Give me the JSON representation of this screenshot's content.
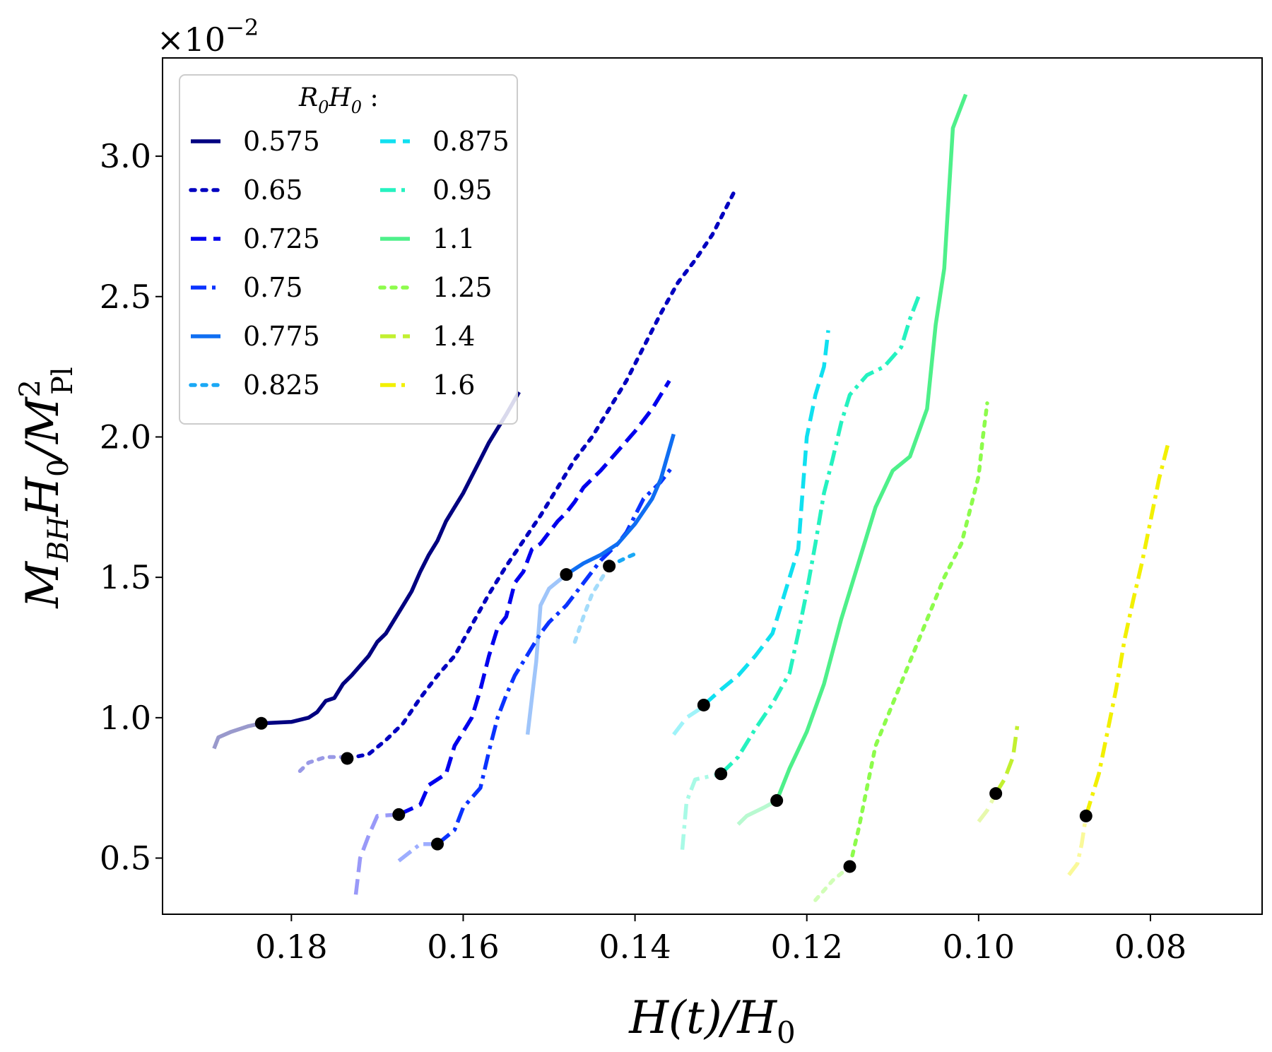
{
  "chart_data": {
    "type": "line",
    "title": "",
    "xlabel": "H(t)/H",
    "xlabel_sub": "0",
    "ylabel_main": "M",
    "ylabel_sub1": "BH",
    "ylabel_mid": "H",
    "ylabel_sub2": "0",
    "ylabel_tail": "/M",
    "ylabel_sup": "2",
    "ylabel_sub3": "Pl",
    "y_multiplier": "×10",
    "y_multiplier_exp": "−2",
    "xlim": [
      0.195,
      0.067
    ],
    "ylim": [
      0.3,
      3.35
    ],
    "x_ticks": [
      0.18,
      0.16,
      0.14,
      0.12,
      0.1,
      0.08
    ],
    "x_tick_labels": [
      "0.18",
      "0.16",
      "0.14",
      "0.12",
      "0.10",
      "0.08"
    ],
    "y_ticks": [
      0.5,
      1.0,
      1.5,
      2.0,
      2.5,
      3.0
    ],
    "y_tick_labels": [
      "0.5",
      "1.0",
      "1.5",
      "2.0",
      "2.5",
      "3.0"
    ],
    "legend": {
      "title_main": "R",
      "title_sub1": "0",
      "title_mid": "H",
      "title_sub2": "0",
      "title_tail": " :",
      "position": "top-left"
    },
    "series": [
      {
        "name": "0.575",
        "color": "#000080",
        "dash": "solid",
        "pre": [
          [
            0.189,
            0.89
          ],
          [
            0.1885,
            0.93
          ],
          [
            0.187,
            0.95
          ],
          [
            0.185,
            0.97
          ],
          [
            0.1835,
            0.98
          ]
        ],
        "marker": [
          0.1835,
          0.98
        ],
        "post": [
          [
            0.1835,
            0.98
          ],
          [
            0.18,
            0.985
          ],
          [
            0.178,
            1.0
          ],
          [
            0.177,
            1.02
          ],
          [
            0.176,
            1.06
          ],
          [
            0.175,
            1.07
          ],
          [
            0.174,
            1.12
          ],
          [
            0.173,
            1.15
          ],
          [
            0.171,
            1.22
          ],
          [
            0.17,
            1.27
          ],
          [
            0.169,
            1.3
          ],
          [
            0.168,
            1.35
          ],
          [
            0.167,
            1.4
          ],
          [
            0.166,
            1.45
          ],
          [
            0.165,
            1.52
          ],
          [
            0.164,
            1.58
          ],
          [
            0.163,
            1.63
          ],
          [
            0.162,
            1.7
          ],
          [
            0.161,
            1.75
          ],
          [
            0.16,
            1.8
          ],
          [
            0.159,
            1.86
          ],
          [
            0.158,
            1.92
          ],
          [
            0.157,
            1.98
          ],
          [
            0.156,
            2.03
          ],
          [
            0.155,
            2.08
          ],
          [
            0.1535,
            2.16
          ]
        ]
      },
      {
        "name": "0.65",
        "color": "#0000c0",
        "dash": "dotted",
        "pre": [
          [
            0.179,
            0.81
          ],
          [
            0.178,
            0.84
          ],
          [
            0.176,
            0.86
          ],
          [
            0.1735,
            0.86
          ]
        ],
        "marker": [
          0.1735,
          0.855
        ],
        "post": [
          [
            0.1735,
            0.855
          ],
          [
            0.171,
            0.87
          ],
          [
            0.169,
            0.92
          ],
          [
            0.167,
            0.98
          ],
          [
            0.165,
            1.07
          ],
          [
            0.163,
            1.15
          ],
          [
            0.161,
            1.22
          ],
          [
            0.159,
            1.33
          ],
          [
            0.157,
            1.44
          ],
          [
            0.155,
            1.54
          ],
          [
            0.153,
            1.63
          ],
          [
            0.151,
            1.72
          ],
          [
            0.149,
            1.82
          ],
          [
            0.147,
            1.92
          ],
          [
            0.145,
            2.0
          ],
          [
            0.143,
            2.1
          ],
          [
            0.141,
            2.2
          ],
          [
            0.139,
            2.32
          ],
          [
            0.137,
            2.44
          ],
          [
            0.135,
            2.55
          ],
          [
            0.133,
            2.63
          ],
          [
            0.131,
            2.72
          ],
          [
            0.1285,
            2.87
          ]
        ]
      },
      {
        "name": "0.725",
        "color": "#0000ee",
        "dash": "dashed",
        "pre": [
          [
            0.1725,
            0.37
          ],
          [
            0.172,
            0.5
          ],
          [
            0.171,
            0.58
          ],
          [
            0.17,
            0.65
          ],
          [
            0.1675,
            0.655
          ]
        ],
        "marker": [
          0.1675,
          0.655
        ],
        "post": [
          [
            0.1675,
            0.655
          ],
          [
            0.165,
            0.69
          ],
          [
            0.164,
            0.76
          ],
          [
            0.162,
            0.8
          ],
          [
            0.161,
            0.9
          ],
          [
            0.159,
            1.0
          ],
          [
            0.158,
            1.1
          ],
          [
            0.157,
            1.22
          ],
          [
            0.156,
            1.32
          ],
          [
            0.155,
            1.36
          ],
          [
            0.154,
            1.48
          ],
          [
            0.153,
            1.52
          ],
          [
            0.152,
            1.6
          ],
          [
            0.151,
            1.62
          ],
          [
            0.15,
            1.66
          ],
          [
            0.149,
            1.7
          ],
          [
            0.148,
            1.73
          ],
          [
            0.147,
            1.77
          ],
          [
            0.146,
            1.82
          ],
          [
            0.144,
            1.88
          ],
          [
            0.142,
            1.95
          ],
          [
            0.14,
            2.02
          ],
          [
            0.138,
            2.1
          ],
          [
            0.136,
            2.2
          ]
        ]
      },
      {
        "name": "0.75",
        "color": "#0a33ff",
        "dash": "dashdot",
        "pre": [
          [
            0.1675,
            0.49
          ],
          [
            0.165,
            0.55
          ],
          [
            0.163,
            0.55
          ]
        ],
        "marker": [
          0.163,
          0.55
        ],
        "post": [
          [
            0.163,
            0.55
          ],
          [
            0.161,
            0.6
          ],
          [
            0.16,
            0.68
          ],
          [
            0.158,
            0.75
          ],
          [
            0.157,
            0.88
          ],
          [
            0.156,
            1.0
          ],
          [
            0.155,
            1.08
          ],
          [
            0.154,
            1.15
          ],
          [
            0.153,
            1.2
          ],
          [
            0.152,
            1.25
          ],
          [
            0.151,
            1.3
          ],
          [
            0.15,
            1.34
          ],
          [
            0.149,
            1.37
          ],
          [
            0.148,
            1.4
          ],
          [
            0.147,
            1.44
          ],
          [
            0.146,
            1.48
          ],
          [
            0.145,
            1.52
          ],
          [
            0.144,
            1.56
          ],
          [
            0.142,
            1.62
          ],
          [
            0.141,
            1.66
          ],
          [
            0.14,
            1.72
          ],
          [
            0.139,
            1.78
          ],
          [
            0.137,
            1.84
          ],
          [
            0.1355,
            1.9
          ]
        ]
      },
      {
        "name": "0.775",
        "color": "#0f6ef2",
        "dash": "solid",
        "pre": [
          [
            0.1525,
            0.94
          ],
          [
            0.1515,
            1.2
          ],
          [
            0.151,
            1.4
          ],
          [
            0.15,
            1.46
          ],
          [
            0.148,
            1.51
          ]
        ],
        "marker": [
          0.148,
          1.51
        ],
        "post": [
          [
            0.148,
            1.51
          ],
          [
            0.146,
            1.55
          ],
          [
            0.144,
            1.58
          ],
          [
            0.142,
            1.62
          ],
          [
            0.14,
            1.69
          ],
          [
            0.138,
            1.78
          ],
          [
            0.137,
            1.85
          ],
          [
            0.1355,
            2.01
          ]
        ]
      },
      {
        "name": "0.825",
        "color": "#1aa8f5",
        "dash": "dotted",
        "pre": [
          [
            0.147,
            1.27
          ],
          [
            0.146,
            1.36
          ],
          [
            0.145,
            1.44
          ],
          [
            0.143,
            1.54
          ]
        ],
        "marker": [
          0.143,
          1.54
        ],
        "post": [
          [
            0.143,
            1.54
          ],
          [
            0.141,
            1.57
          ],
          [
            0.1395,
            1.59
          ]
        ]
      },
      {
        "name": "0.875",
        "color": "#10e0f0",
        "dash": "dashed",
        "pre": [
          [
            0.1355,
            0.94
          ],
          [
            0.134,
            1.0
          ],
          [
            0.132,
            1.04
          ]
        ],
        "marker": [
          0.132,
          1.045
        ],
        "post": [
          [
            0.132,
            1.045
          ],
          [
            0.13,
            1.1
          ],
          [
            0.128,
            1.15
          ],
          [
            0.126,
            1.22
          ],
          [
            0.124,
            1.3
          ],
          [
            0.123,
            1.4
          ],
          [
            0.122,
            1.5
          ],
          [
            0.121,
            1.6
          ],
          [
            0.1205,
            1.8
          ],
          [
            0.12,
            2.0
          ],
          [
            0.119,
            2.15
          ],
          [
            0.118,
            2.25
          ],
          [
            0.1175,
            2.38
          ]
        ]
      },
      {
        "name": "0.95",
        "color": "#25f2c0",
        "dash": "dashdot",
        "pre": [
          [
            0.1345,
            0.53
          ],
          [
            0.134,
            0.7
          ],
          [
            0.133,
            0.78
          ],
          [
            0.13,
            0.8
          ]
        ],
        "marker": [
          0.13,
          0.8
        ],
        "post": [
          [
            0.13,
            0.8
          ],
          [
            0.128,
            0.86
          ],
          [
            0.126,
            0.96
          ],
          [
            0.124,
            1.05
          ],
          [
            0.122,
            1.16
          ],
          [
            0.121,
            1.3
          ],
          [
            0.12,
            1.45
          ],
          [
            0.119,
            1.62
          ],
          [
            0.118,
            1.8
          ],
          [
            0.117,
            1.92
          ],
          [
            0.116,
            2.05
          ],
          [
            0.115,
            2.15
          ],
          [
            0.113,
            2.22
          ],
          [
            0.111,
            2.25
          ],
          [
            0.109,
            2.32
          ],
          [
            0.108,
            2.42
          ],
          [
            0.107,
            2.5
          ]
        ]
      },
      {
        "name": "1.1",
        "color": "#4ef08a",
        "dash": "solid",
        "pre": [
          [
            0.128,
            0.62
          ],
          [
            0.127,
            0.65
          ],
          [
            0.125,
            0.68
          ],
          [
            0.1235,
            0.705
          ]
        ],
        "marker": [
          0.1235,
          0.705
        ],
        "post": [
          [
            0.1235,
            0.705
          ],
          [
            0.122,
            0.82
          ],
          [
            0.12,
            0.95
          ],
          [
            0.118,
            1.12
          ],
          [
            0.116,
            1.35
          ],
          [
            0.114,
            1.55
          ],
          [
            0.112,
            1.75
          ],
          [
            0.11,
            1.88
          ],
          [
            0.108,
            1.93
          ],
          [
            0.106,
            2.1
          ],
          [
            0.105,
            2.4
          ],
          [
            0.104,
            2.6
          ],
          [
            0.103,
            3.1
          ],
          [
            0.1015,
            3.22
          ]
        ]
      },
      {
        "name": "1.25",
        "color": "#8dfc4c",
        "dash": "dotted",
        "pre": [
          [
            0.119,
            0.35
          ],
          [
            0.117,
            0.42
          ],
          [
            0.115,
            0.47
          ]
        ],
        "marker": [
          0.115,
          0.47
        ],
        "post": [
          [
            0.115,
            0.47
          ],
          [
            0.114,
            0.6
          ],
          [
            0.113,
            0.75
          ],
          [
            0.112,
            0.9
          ],
          [
            0.11,
            1.05
          ],
          [
            0.108,
            1.2
          ],
          [
            0.106,
            1.35
          ],
          [
            0.104,
            1.5
          ],
          [
            0.102,
            1.62
          ],
          [
            0.101,
            1.74
          ],
          [
            0.1,
            1.86
          ],
          [
            0.0995,
            2.0
          ],
          [
            0.099,
            2.12
          ]
        ]
      },
      {
        "name": "1.4",
        "color": "#c2f030",
        "dash": "dashed",
        "pre": [
          [
            0.1,
            0.63
          ],
          [
            0.099,
            0.67
          ],
          [
            0.098,
            0.73
          ]
        ],
        "marker": [
          0.098,
          0.73
        ],
        "post": [
          [
            0.098,
            0.73
          ],
          [
            0.097,
            0.78
          ],
          [
            0.096,
            0.86
          ],
          [
            0.0955,
            0.97
          ]
        ]
      },
      {
        "name": "1.6",
        "color": "#f2f000",
        "dash": "dashdot",
        "pre": [
          [
            0.0895,
            0.44
          ],
          [
            0.0885,
            0.48
          ],
          [
            0.088,
            0.55
          ],
          [
            0.0875,
            0.65
          ]
        ],
        "marker": [
          0.0875,
          0.65
        ],
        "post": [
          [
            0.0875,
            0.65
          ],
          [
            0.086,
            0.8
          ],
          [
            0.085,
            0.95
          ],
          [
            0.084,
            1.1
          ],
          [
            0.083,
            1.28
          ],
          [
            0.082,
            1.42
          ],
          [
            0.081,
            1.55
          ],
          [
            0.08,
            1.7
          ],
          [
            0.079,
            1.85
          ],
          [
            0.078,
            1.97
          ]
        ]
      }
    ]
  }
}
